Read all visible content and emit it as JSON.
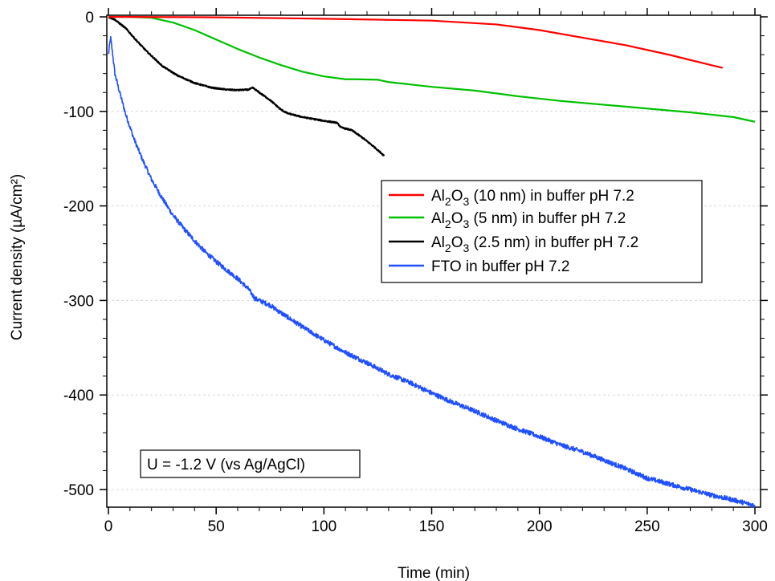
{
  "chart_data": {
    "type": "line",
    "title": "",
    "xlabel": "Time (min)",
    "ylabel": "Current density (µA/cm²)",
    "xlim": [
      0,
      300
    ],
    "ylim": [
      -520,
      0
    ],
    "x_ticks": [
      0,
      50,
      100,
      150,
      200,
      250,
      300
    ],
    "x_tick_labels": [
      "0",
      "50",
      "100",
      "150",
      "200",
      "250",
      "300"
    ],
    "y_ticks": [
      0,
      -100,
      -200,
      -300,
      -400,
      -500
    ],
    "y_tick_labels": [
      "0",
      "-100",
      "-200",
      "-300",
      "-400",
      "-500"
    ],
    "grid": "horizontal dashed",
    "legend_position": "center-right",
    "annotation": "U = -1.2 V (vs Ag/AgCl)",
    "series": [
      {
        "name": "Al2O3 (10 nm) in  buffer pH 7.2",
        "legend_parts": {
          "a": "Al",
          "sub1": "2",
          "b": "O",
          "sub2": "3",
          "rest": " (10 nm) in  buffer pH 7.2"
        },
        "color": "#ff0000",
        "noise": 0,
        "points": [
          [
            0,
            0
          ],
          [
            50,
            -0.5
          ],
          [
            100,
            -2
          ],
          [
            150,
            -4
          ],
          [
            180,
            -8
          ],
          [
            200,
            -14
          ],
          [
            220,
            -22
          ],
          [
            240,
            -30
          ],
          [
            260,
            -40
          ],
          [
            285,
            -54
          ]
        ]
      },
      {
        "name": "Al2O3 (5 nm) in  buffer pH 7.2",
        "legend_parts": {
          "a": "Al",
          "sub1": "2",
          "b": "O",
          "sub2": "3",
          "rest": " (5 nm) in  buffer pH 7.2"
        },
        "color": "#00c000",
        "noise": 0,
        "points": [
          [
            0,
            0
          ],
          [
            10,
            0
          ],
          [
            20,
            -1
          ],
          [
            30,
            -6
          ],
          [
            40,
            -14
          ],
          [
            50,
            -24
          ],
          [
            60,
            -34
          ],
          [
            70,
            -43
          ],
          [
            80,
            -51
          ],
          [
            90,
            -58
          ],
          [
            100,
            -63
          ],
          [
            110,
            -66
          ],
          [
            115,
            -66
          ],
          [
            125,
            -66.5
          ],
          [
            130,
            -69
          ],
          [
            150,
            -74
          ],
          [
            170,
            -78
          ],
          [
            190,
            -84
          ],
          [
            210,
            -89
          ],
          [
            230,
            -93
          ],
          [
            250,
            -97
          ],
          [
            270,
            -101
          ],
          [
            290,
            -106
          ],
          [
            300,
            -111
          ]
        ]
      },
      {
        "name": "Al2O3 (2.5 nm) in  buffer pH 7.2",
        "legend_parts": {
          "a": "Al",
          "sub1": "2",
          "b": "O",
          "sub2": "3",
          "rest": " (2.5 nm) in  buffer pH 7.2"
        },
        "color": "#000000",
        "noise": 0.6,
        "points": [
          [
            0,
            0
          ],
          [
            3,
            -3
          ],
          [
            8,
            -12
          ],
          [
            13,
            -25
          ],
          [
            18,
            -37
          ],
          [
            25,
            -52
          ],
          [
            32,
            -62
          ],
          [
            40,
            -70
          ],
          [
            48,
            -75
          ],
          [
            55,
            -77
          ],
          [
            60,
            -77.5
          ],
          [
            65,
            -77
          ],
          [
            67,
            -75
          ],
          [
            70,
            -80
          ],
          [
            75,
            -88
          ],
          [
            80,
            -98
          ],
          [
            83,
            -102
          ],
          [
            90,
            -106
          ],
          [
            100,
            -110
          ],
          [
            106,
            -112
          ],
          [
            108,
            -117
          ],
          [
            113,
            -120
          ],
          [
            118,
            -128
          ],
          [
            123,
            -137
          ],
          [
            128,
            -147
          ]
        ]
      },
      {
        "name": "FTO  in  buffer pH 7.2",
        "legend_parts": {
          "a": "FTO  in  buffer pH 7.2",
          "sub1": "",
          "b": "",
          "sub2": "",
          "rest": ""
        },
        "color": "#1f4fff",
        "noise": 2.5,
        "points": [
          [
            0,
            -40
          ],
          [
            1,
            -22
          ],
          [
            2,
            -40
          ],
          [
            3,
            -60
          ],
          [
            5,
            -78
          ],
          [
            8,
            -103
          ],
          [
            12,
            -130
          ],
          [
            16,
            -152
          ],
          [
            20,
            -172
          ],
          [
            25,
            -192
          ],
          [
            30,
            -210
          ],
          [
            35,
            -224
          ],
          [
            40,
            -237
          ],
          [
            45,
            -249
          ],
          [
            50,
            -259
          ],
          [
            55,
            -268
          ],
          [
            60,
            -277
          ],
          [
            65,
            -288
          ],
          [
            68,
            -298
          ],
          [
            75,
            -305
          ],
          [
            80,
            -313
          ],
          [
            90,
            -328
          ],
          [
            100,
            -342
          ],
          [
            110,
            -355
          ],
          [
            120,
            -366
          ],
          [
            130,
            -378
          ],
          [
            140,
            -387
          ],
          [
            150,
            -398
          ],
          [
            160,
            -408
          ],
          [
            170,
            -417
          ],
          [
            180,
            -427
          ],
          [
            190,
            -436
          ],
          [
            200,
            -444
          ],
          [
            210,
            -453
          ],
          [
            220,
            -460
          ],
          [
            230,
            -469
          ],
          [
            240,
            -478
          ],
          [
            250,
            -488
          ],
          [
            260,
            -494
          ],
          [
            270,
            -500
          ],
          [
            280,
            -506
          ],
          [
            290,
            -511
          ],
          [
            300,
            -517
          ]
        ]
      }
    ]
  }
}
